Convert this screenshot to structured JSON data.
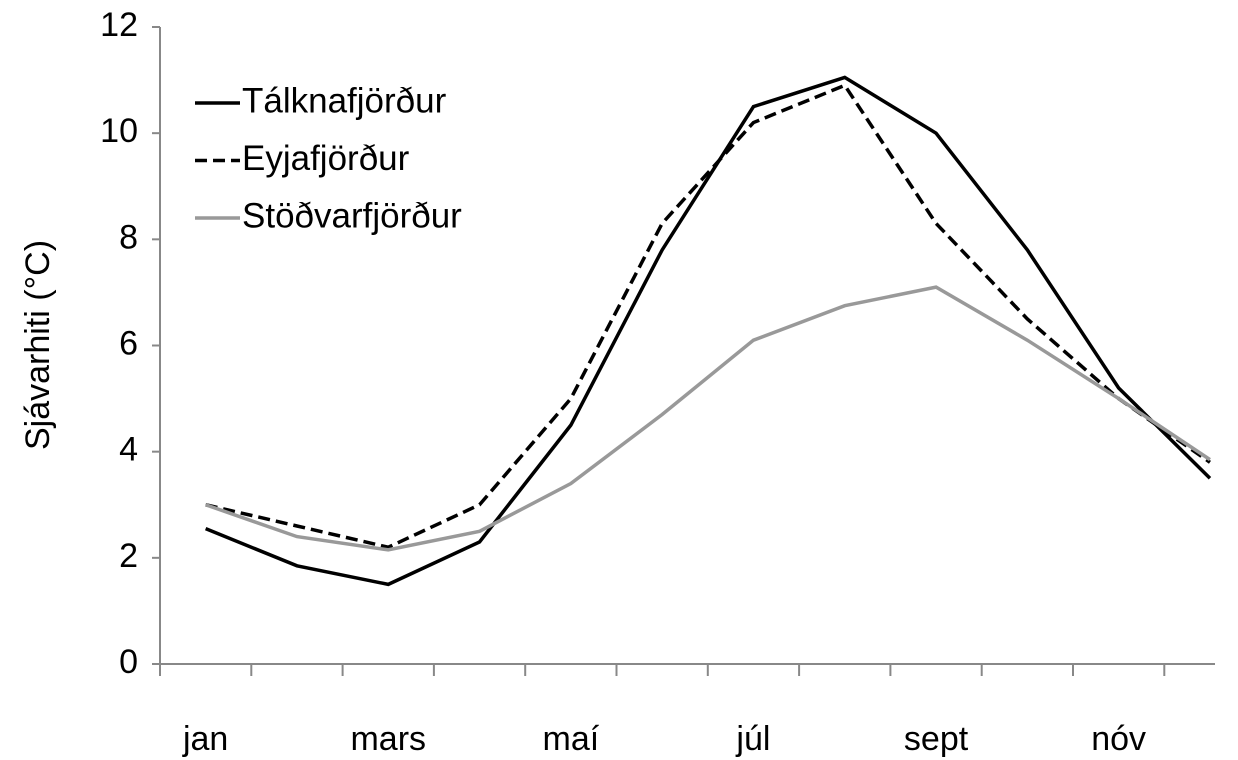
{
  "chart_data": {
    "type": "line",
    "y_label": "Sjávarhiti (°C)",
    "categories": [
      "jan",
      null,
      "mars",
      null,
      "maí",
      null,
      "júl",
      null,
      "sept",
      null,
      "nóv",
      null
    ],
    "series": [
      {
        "name": "Tálknafjörður",
        "color": "#000000",
        "style": "solid",
        "values": [
          2.55,
          1.85,
          1.5,
          2.3,
          4.5,
          7.8,
          10.5,
          11.05,
          10.0,
          7.8,
          5.2,
          3.5
        ]
      },
      {
        "name": "Eyjafjörður",
        "color": "#000000",
        "style": "dashed",
        "values": [
          3.0,
          2.6,
          2.2,
          3.0,
          5.0,
          8.3,
          10.2,
          10.9,
          8.3,
          6.5,
          5.0,
          3.8
        ]
      },
      {
        "name": "Stöðvarfjörður",
        "color": "#999999",
        "style": "solid",
        "values": [
          3.0,
          2.4,
          2.15,
          2.5,
          3.4,
          4.7,
          6.1,
          6.75,
          7.1,
          6.1,
          5.0,
          3.85
        ]
      }
    ],
    "ylim": [
      0,
      12
    ],
    "yticks": [
      0,
      2,
      4,
      6,
      8,
      10,
      12
    ],
    "grid": false,
    "legend": "upper left"
  }
}
